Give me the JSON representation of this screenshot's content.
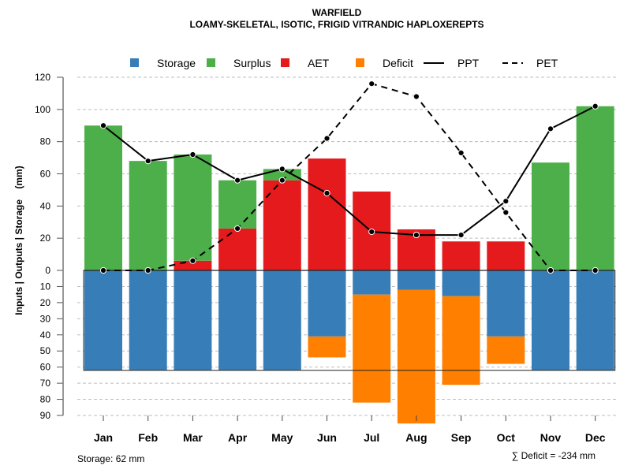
{
  "chart_data": {
    "type": "bar",
    "title": "WARFIELD",
    "subtitle": "LOAMY-SKELETAL, ISOTIC, FRIGID VITRANDIC HAPLOXEREPTS",
    "ylabel": "Inputs | Outputs | Storage    (mm)",
    "xlabel": "",
    "categories": [
      "Jan",
      "Feb",
      "Mar",
      "Apr",
      "May",
      "Jun",
      "Jul",
      "Aug",
      "Sep",
      "Oct",
      "Nov",
      "Dec"
    ],
    "upper_ylim": [
      0,
      120
    ],
    "upper_ticks": [
      "0",
      "20",
      "40",
      "60",
      "80",
      "100",
      "120"
    ],
    "lower_ylim": [
      0,
      90
    ],
    "lower_ticks": [
      "0",
      "10",
      "20",
      "30",
      "40",
      "50",
      "60",
      "70",
      "80",
      "90"
    ],
    "grid": true,
    "legend_position": "top",
    "legend": [
      {
        "name": "Storage",
        "kind": "box",
        "color": "#377EB8"
      },
      {
        "name": "Surplus",
        "kind": "box",
        "color": "#4DAF4A"
      },
      {
        "name": "AET",
        "kind": "box",
        "color": "#E41A1C"
      },
      {
        "name": "Deficit",
        "kind": "box",
        "color": "#FF7F00"
      },
      {
        "name": "PPT",
        "kind": "solid-line",
        "color": "#000000"
      },
      {
        "name": "PET",
        "kind": "dashed-line",
        "color": "#000000"
      }
    ],
    "series": [
      {
        "name": "AET",
        "color": "#E41A1C",
        "values": [
          0,
          0,
          6,
          26,
          56,
          69.5,
          49,
          25.5,
          18,
          18,
          0,
          0
        ]
      },
      {
        "name": "Surplus",
        "color": "#4DAF4A",
        "values": [
          90,
          68,
          66,
          30,
          7,
          0,
          0,
          0,
          0,
          0,
          67,
          102
        ]
      },
      {
        "name": "Storage",
        "color": "#377EB8",
        "values": [
          62,
          62,
          62,
          62,
          62,
          41,
          15,
          12,
          16,
          41,
          62,
          62
        ]
      },
      {
        "name": "Deficit",
        "color": "#FF7F00",
        "values": [
          0,
          0,
          0,
          0,
          0,
          13,
          67,
          83,
          55,
          17,
          0,
          0
        ]
      },
      {
        "name": "PPT",
        "color": "#000000",
        "values": [
          90,
          68,
          72,
          56,
          63,
          48,
          24,
          22,
          22,
          43,
          88,
          102
        ]
      },
      {
        "name": "PET",
        "color": "#000000",
        "values": [
          0,
          0,
          6,
          26,
          56,
          82,
          116,
          108,
          73,
          36,
          0,
          0
        ]
      }
    ],
    "storage_capacity": 62,
    "annotations": {
      "storage": "Storage: 62 mm",
      "deficit": "∑ Deficit = -234 mm"
    }
  }
}
